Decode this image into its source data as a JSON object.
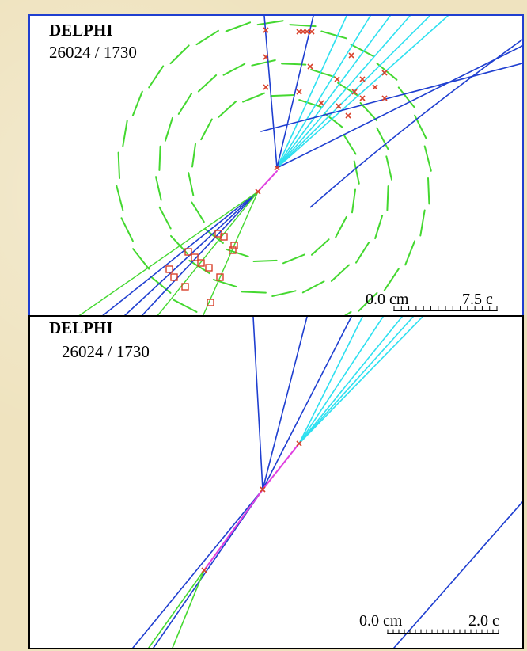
{
  "top_panel": {
    "experiment": "DELPHI",
    "event_id": "26024 /  1730",
    "scale_left": "0.0 cm",
    "scale_right": "7.5 c"
  },
  "bottom_panel": {
    "experiment": "DELPHI",
    "event_id": "26024 /  1730",
    "scale_left": "0.0 cm",
    "scale_right": "2.0 c"
  },
  "colors": {
    "background": "#efe3bf",
    "detector_segments": "#44d830",
    "tracks": "#1f3fd0",
    "tracks_light": "#2ee0f0",
    "vertex_link": "#e040e0",
    "hits": "#d8402a",
    "frame_top": "#1f3fd0",
    "frame_bottom": "#000000"
  }
}
